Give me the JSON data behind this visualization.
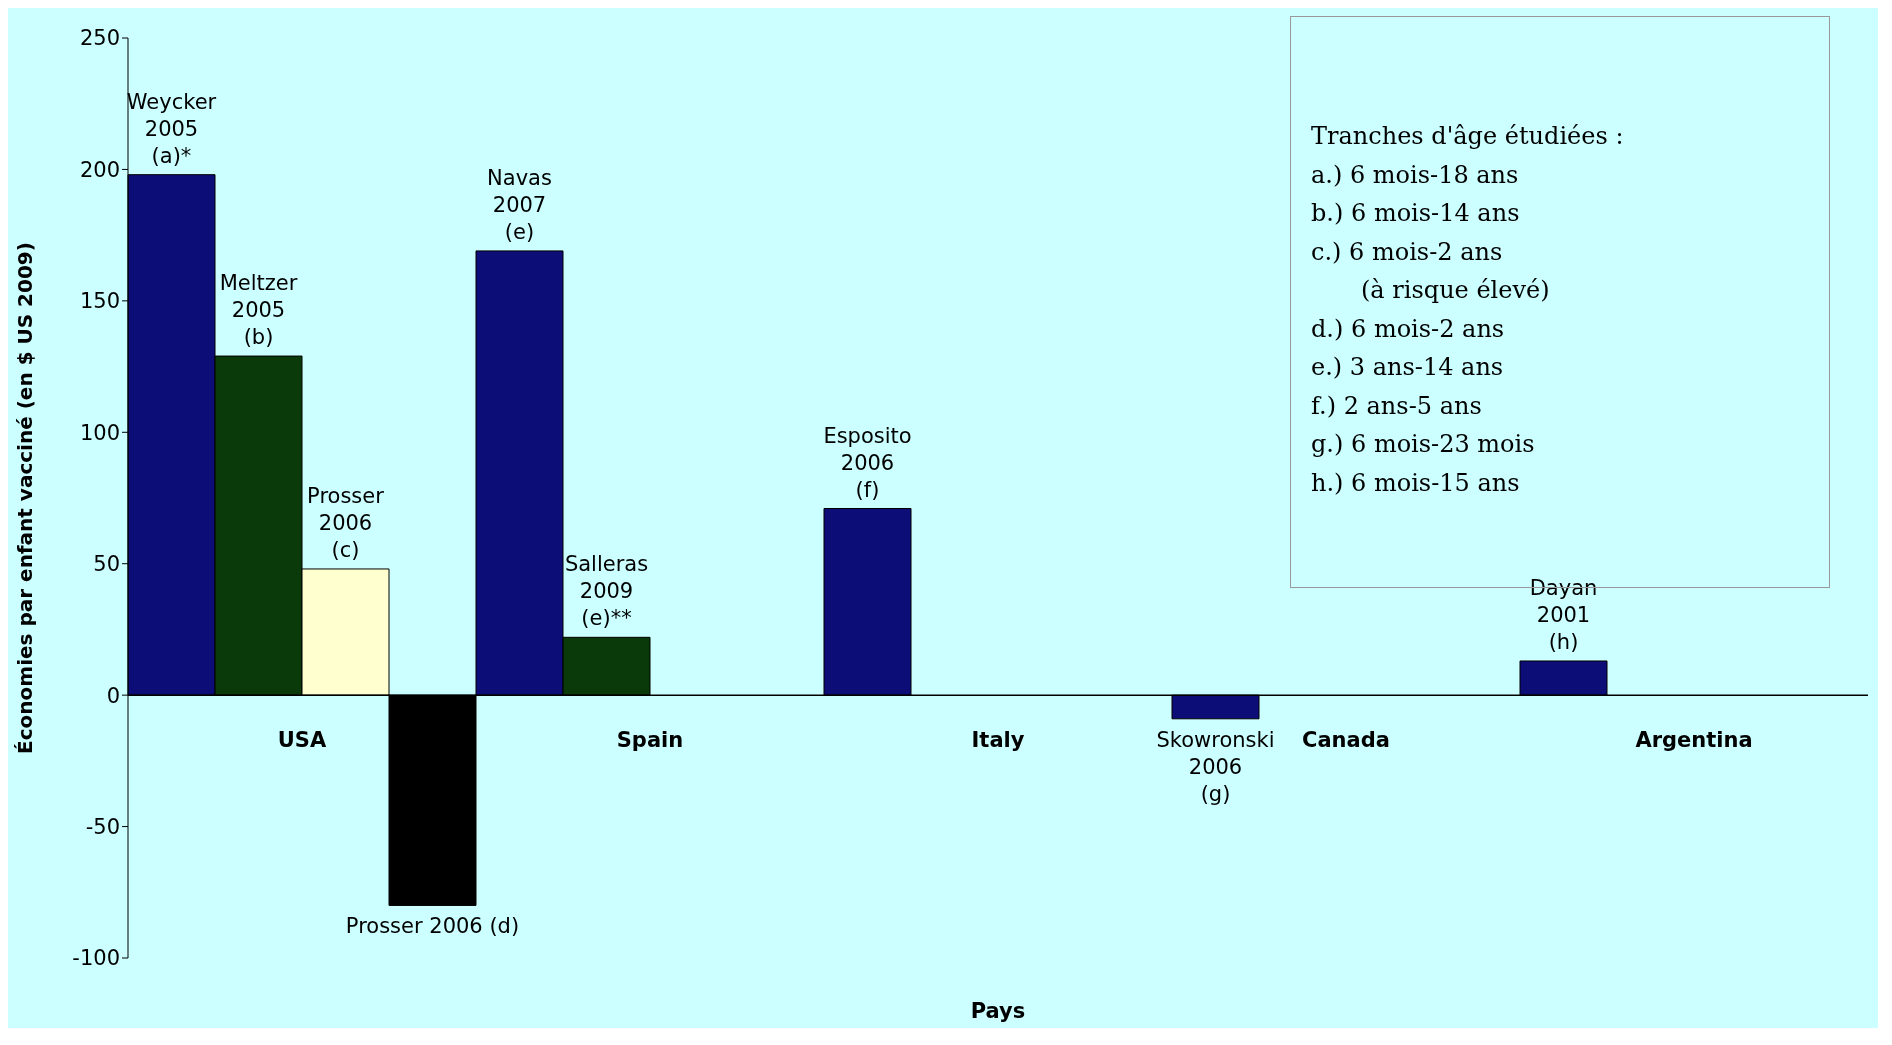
{
  "chart_data": {
    "type": "bar",
    "xlabel": "Pays",
    "ylabel": "Économies par enfant vacciné (en $ US 2009)",
    "categories": [
      "USA",
      "Spain",
      "Italy",
      "Canada",
      "Argentina"
    ],
    "series": [
      {
        "color": "#0d0d78",
        "values": [
          198,
          169,
          71,
          -9,
          13
        ]
      },
      {
        "color": "#0a3a0a",
        "values": [
          129,
          22,
          null,
          null,
          null
        ]
      },
      {
        "color": "#ffffd0",
        "values": [
          48,
          null,
          null,
          null,
          null
        ]
      },
      {
        "color": "#000000",
        "values": [
          -80,
          null,
          null,
          null,
          null
        ]
      }
    ],
    "ylim": [
      -100,
      250
    ],
    "yticks": [
      -100,
      -50,
      0,
      50,
      100,
      150,
      200,
      250
    ],
    "grid": false,
    "legend": false,
    "annotations": [
      "Weycker\n2005\n(a)*",
      "Meltzer\n2005\n(b)",
      "Prosser\n2006\n(c)",
      "Prosser 2006 (d)",
      "Navas\n2007\n(e)",
      "Salleras\n2009\n(e)**",
      "Esposito\n2006\n(f)",
      "Skowronski\n2006\n(g)",
      "Dayan\n2001\n(h)",
      "Tranches d'âge étudiées :",
      "a.) 6 mois-18 ans",
      "b.) 6 mois-14 ans",
      "c.) 6 mois-2 ans",
      "(à risque élevé)",
      "d.) 6 mois-2 ans",
      "e.) 3 ans-14 ans",
      "f.) 2 ans-5 ans",
      "g.) 6 mois-23 mois",
      "h.) 6 mois-15 ans"
    ]
  }
}
